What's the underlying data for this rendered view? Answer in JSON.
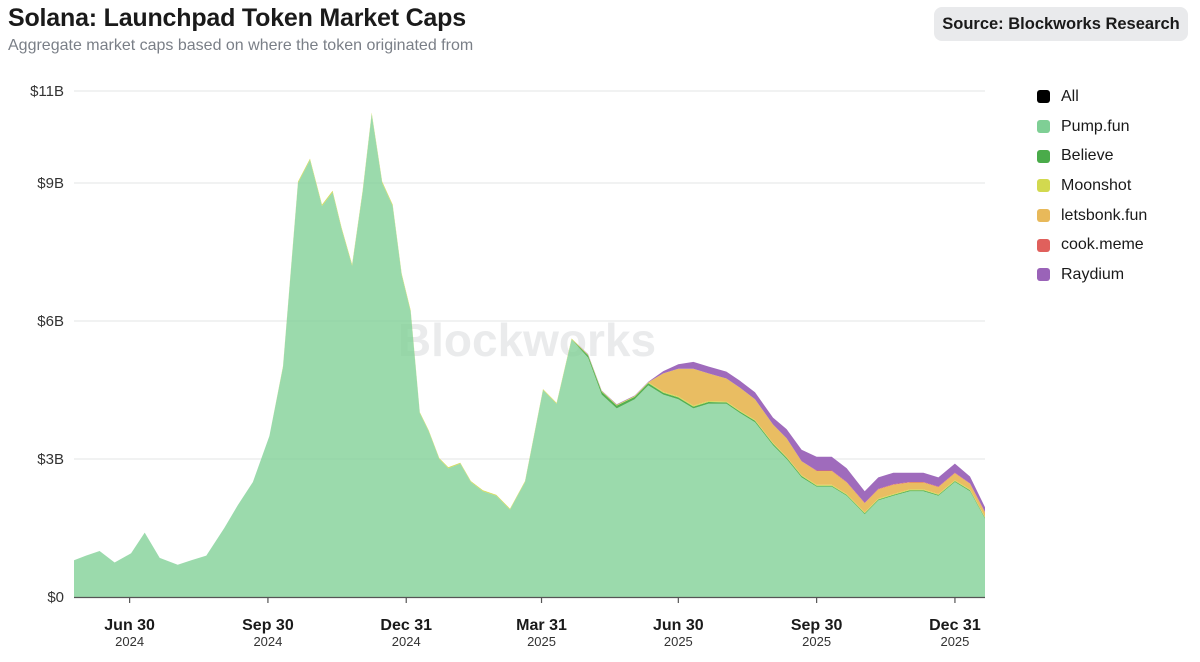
{
  "header": {
    "title": "Solana: Launchpad Token Market Caps",
    "subtitle": "Aggregate market caps based on where the token originated from",
    "source": "Source: Blockworks Research"
  },
  "watermark": "Blockworks",
  "chart_data": {
    "type": "area",
    "stacked": true,
    "title": "Solana: Launchpad Token Market Caps",
    "subtitle": "Aggregate market caps based on where the token originated from",
    "xlabel": "",
    "ylabel": "",
    "ylim": [
      0,
      11000000000
    ],
    "y_ticks": [
      {
        "value": 0,
        "label": "$0"
      },
      {
        "value": 3000000000,
        "label": "$3B"
      },
      {
        "value": 6000000000,
        "label": "$6B"
      },
      {
        "value": 9000000000,
        "label": "$9B"
      },
      {
        "value": 11000000000,
        "label": "$11B"
      }
    ],
    "x_range": [
      "2024-05-24",
      "2026-01-20"
    ],
    "x_ticks": [
      {
        "date": "2024-06-30",
        "label": "Jun 30",
        "year": "2024"
      },
      {
        "date": "2024-09-30",
        "label": "Sep 30",
        "year": "2024"
      },
      {
        "date": "2024-12-31",
        "label": "Dec 31",
        "year": "2024"
      },
      {
        "date": "2025-03-31",
        "label": "Mar 31",
        "year": "2025"
      },
      {
        "date": "2025-06-30",
        "label": "Jun 30",
        "year": "2025"
      },
      {
        "date": "2025-09-30",
        "label": "Sep 30",
        "year": "2025"
      },
      {
        "date": "2025-12-31",
        "label": "Dec 31",
        "year": "2025"
      }
    ],
    "legend": [
      {
        "name": "All",
        "color": "#000000"
      },
      {
        "name": "Pump.fun",
        "color": "#7fcf95"
      },
      {
        "name": "Believe",
        "color": "#4aab4a"
      },
      {
        "name": "Moonshot",
        "color": "#d2d94f"
      },
      {
        "name": "letsbonk.fun",
        "color": "#e8b95a"
      },
      {
        "name": "cook.meme",
        "color": "#e0605c"
      },
      {
        "name": "Raydium",
        "color": "#9a63b8"
      }
    ],
    "legend_position": "right",
    "grid": true,
    "dates": [
      "2024-05-24",
      "2024-06-01",
      "2024-06-10",
      "2024-06-20",
      "2024-07-01",
      "2024-07-10",
      "2024-07-20",
      "2024-08-01",
      "2024-08-10",
      "2024-08-20",
      "2024-09-01",
      "2024-09-10",
      "2024-09-20",
      "2024-10-01",
      "2024-10-10",
      "2024-10-20",
      "2024-10-28",
      "2024-11-05",
      "2024-11-12",
      "2024-11-18",
      "2024-11-25",
      "2024-12-02",
      "2024-12-08",
      "2024-12-15",
      "2024-12-22",
      "2024-12-28",
      "2025-01-03",
      "2025-01-09",
      "2025-01-15",
      "2025-01-22",
      "2025-01-28",
      "2025-02-05",
      "2025-02-12",
      "2025-02-20",
      "2025-03-01",
      "2025-03-10",
      "2025-03-20",
      "2025-04-01",
      "2025-04-10",
      "2025-04-20",
      "2025-05-01",
      "2025-05-10",
      "2025-05-20",
      "2025-06-01",
      "2025-06-10",
      "2025-06-20",
      "2025-06-30",
      "2025-07-10",
      "2025-07-20",
      "2025-08-01",
      "2025-08-10",
      "2025-08-20",
      "2025-09-01",
      "2025-09-10",
      "2025-09-20",
      "2025-09-30",
      "2025-10-10",
      "2025-10-20",
      "2025-11-01",
      "2025-11-10",
      "2025-11-20",
      "2025-12-01",
      "2025-12-10",
      "2025-12-20",
      "2025-12-31",
      "2026-01-10",
      "2026-01-20"
    ],
    "series": [
      {
        "name": "Pump.fun",
        "values": [
          0.8,
          0.9,
          1.0,
          0.75,
          0.95,
          1.4,
          0.85,
          0.7,
          0.8,
          0.9,
          1.5,
          2.0,
          2.5,
          3.5,
          5.0,
          9.0,
          9.5,
          8.5,
          8.8,
          8.0,
          7.2,
          8.8,
          10.5,
          9.0,
          8.5,
          7.0,
          6.2,
          4.0,
          3.6,
          3.0,
          2.8,
          2.9,
          2.5,
          2.3,
          2.2,
          1.9,
          2.5,
          4.5,
          4.2,
          5.6,
          5.2,
          4.4,
          4.1,
          4.3,
          4.6,
          4.4,
          4.3,
          4.1,
          4.2,
          4.2,
          4.0,
          3.8,
          3.3,
          3.0,
          2.6,
          2.4,
          2.4,
          2.2,
          1.8,
          2.1,
          2.2,
          2.3,
          2.3,
          2.2,
          2.5,
          2.3,
          1.7
        ]
      },
      {
        "name": "Believe",
        "values": [
          0,
          0,
          0,
          0,
          0,
          0,
          0,
          0,
          0,
          0,
          0,
          0,
          0,
          0,
          0,
          0,
          0,
          0,
          0,
          0,
          0,
          0,
          0,
          0,
          0,
          0,
          0,
          0,
          0,
          0,
          0,
          0,
          0,
          0,
          0,
          0,
          0,
          0,
          0,
          0,
          0.05,
          0.06,
          0.06,
          0.05,
          0.05,
          0.04,
          0.04,
          0.04,
          0.04,
          0.03,
          0.03,
          0.03,
          0.03,
          0.03,
          0.03,
          0.02,
          0.02,
          0.02,
          0.02,
          0.02,
          0.02,
          0.02,
          0.02,
          0.02,
          0.02,
          0.02,
          0.02
        ]
      },
      {
        "name": "Moonshot",
        "values": [
          0,
          0,
          0,
          0,
          0,
          0,
          0,
          0,
          0,
          0,
          0,
          0,
          0,
          0,
          0.02,
          0.03,
          0.03,
          0.03,
          0.03,
          0.03,
          0.03,
          0.03,
          0.03,
          0.03,
          0.03,
          0.03,
          0.03,
          0.02,
          0.02,
          0.02,
          0.02,
          0.02,
          0.02,
          0.02,
          0.02,
          0.02,
          0.02,
          0.02,
          0.02,
          0.02,
          0.02,
          0.02,
          0.02,
          0.02,
          0.02,
          0.02,
          0.02,
          0.02,
          0.02,
          0.02,
          0.02,
          0.02,
          0.02,
          0.02,
          0.02,
          0.02,
          0.02,
          0.02,
          0.02,
          0.02,
          0.02,
          0.02,
          0.02,
          0.02,
          0.02,
          0.02,
          0.02
        ]
      },
      {
        "name": "letsbonk.fun",
        "values": [
          0,
          0,
          0,
          0,
          0,
          0,
          0,
          0,
          0,
          0,
          0,
          0,
          0,
          0,
          0,
          0,
          0,
          0,
          0,
          0,
          0,
          0,
          0,
          0,
          0,
          0,
          0,
          0,
          0,
          0,
          0,
          0,
          0,
          0,
          0,
          0,
          0,
          0,
          0,
          0,
          0,
          0,
          0,
          0,
          0,
          0.4,
          0.6,
          0.8,
          0.6,
          0.5,
          0.5,
          0.45,
          0.4,
          0.4,
          0.3,
          0.3,
          0.3,
          0.25,
          0.2,
          0.2,
          0.2,
          0.15,
          0.15,
          0.15,
          0.15,
          0.12,
          0.1
        ]
      },
      {
        "name": "cook.meme",
        "values": [
          0,
          0,
          0,
          0,
          0,
          0,
          0,
          0,
          0,
          0,
          0,
          0,
          0,
          0,
          0,
          0,
          0,
          0,
          0,
          0,
          0,
          0,
          0,
          0,
          0,
          0,
          0,
          0,
          0,
          0,
          0,
          0,
          0,
          0,
          0,
          0,
          0,
          0,
          0,
          0,
          0,
          0,
          0,
          0,
          0,
          0,
          0,
          0,
          0,
          0,
          0,
          0,
          0,
          0,
          0,
          0.01,
          0.01,
          0.01,
          0.01,
          0.01,
          0.01,
          0.01,
          0.01,
          0.01,
          0.01,
          0.01,
          0.01
        ]
      },
      {
        "name": "Raydium",
        "values": [
          0,
          0,
          0,
          0,
          0,
          0,
          0,
          0,
          0,
          0,
          0,
          0,
          0,
          0,
          0,
          0,
          0,
          0,
          0,
          0,
          0,
          0,
          0,
          0,
          0,
          0,
          0,
          0,
          0,
          0,
          0,
          0,
          0,
          0,
          0,
          0,
          0,
          0,
          0,
          0,
          0.01,
          0.01,
          0.01,
          0.01,
          0.01,
          0.05,
          0.1,
          0.15,
          0.15,
          0.15,
          0.15,
          0.15,
          0.15,
          0.2,
          0.25,
          0.3,
          0.3,
          0.3,
          0.25,
          0.25,
          0.25,
          0.2,
          0.2,
          0.2,
          0.2,
          0.15,
          0.1
        ]
      }
    ],
    "values_unit": "billions USD"
  }
}
